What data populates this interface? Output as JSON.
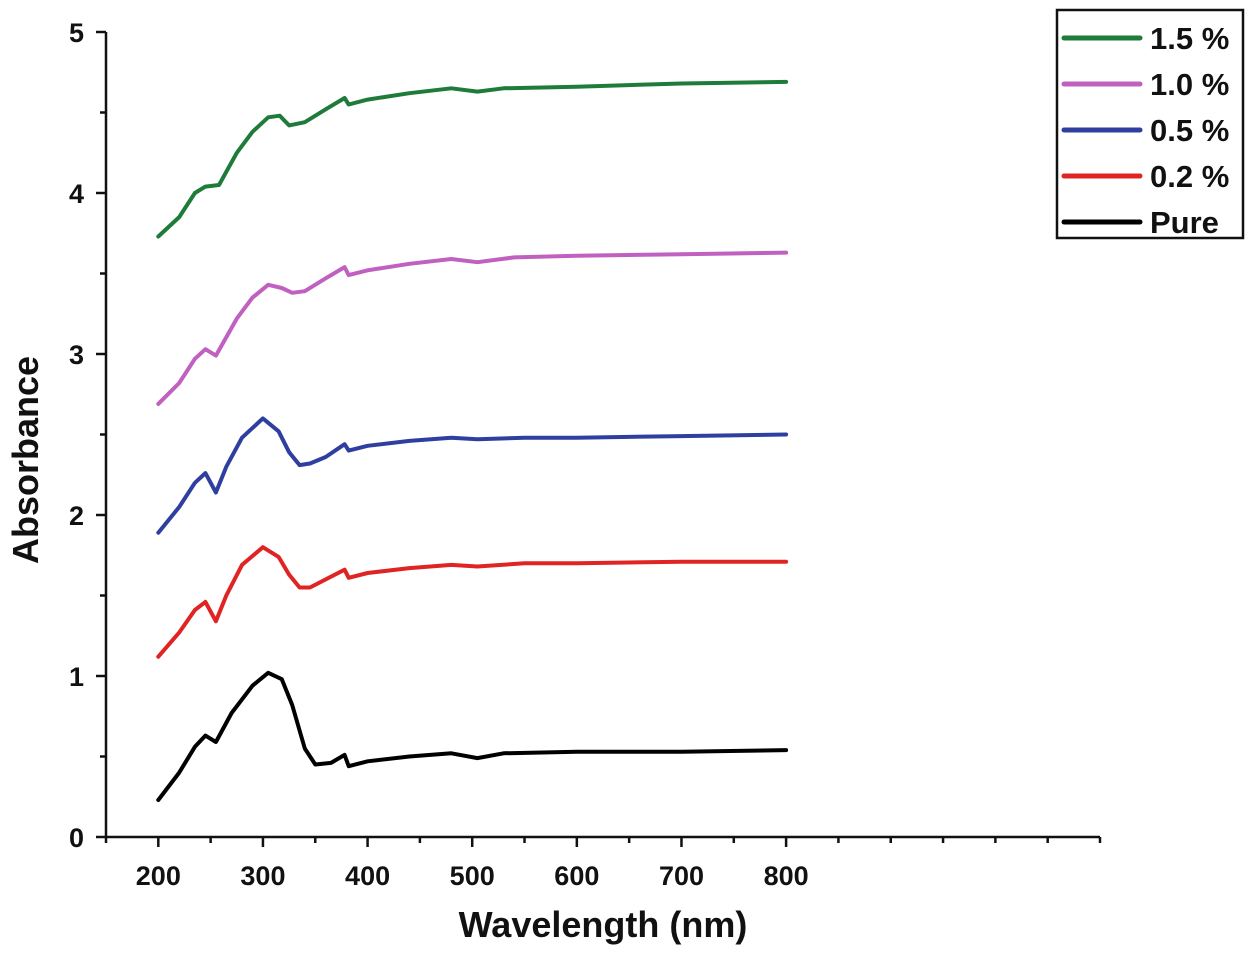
{
  "chart_data": {
    "type": "line",
    "title": "",
    "xlabel": "Wavelength (nm)",
    "ylabel": "Absorbance",
    "xlim": [
      150,
      1100
    ],
    "ylim": [
      0,
      5
    ],
    "x_ticks": [
      200,
      300,
      400,
      500,
      600,
      700,
      800
    ],
    "y_ticks": [
      0,
      1,
      2,
      3,
      4,
      5
    ],
    "grid": false,
    "legend_position": "top-right",
    "series": [
      {
        "name": "1.5 %",
        "color": "#1e7b3a",
        "points": [
          [
            200,
            3.73
          ],
          [
            220,
            3.85
          ],
          [
            235,
            4.0
          ],
          [
            245,
            4.04
          ],
          [
            258,
            4.05
          ],
          [
            275,
            4.25
          ],
          [
            290,
            4.38
          ],
          [
            305,
            4.47
          ],
          [
            316,
            4.48
          ],
          [
            325,
            4.42
          ],
          [
            340,
            4.44
          ],
          [
            360,
            4.52
          ],
          [
            378,
            4.59
          ],
          [
            382,
            4.55
          ],
          [
            400,
            4.58
          ],
          [
            440,
            4.62
          ],
          [
            480,
            4.65
          ],
          [
            505,
            4.63
          ],
          [
            530,
            4.65
          ],
          [
            600,
            4.66
          ],
          [
            700,
            4.68
          ],
          [
            800,
            4.69
          ]
        ]
      },
      {
        "name": "1.0 %",
        "color": "#c060c0",
        "points": [
          [
            200,
            2.69
          ],
          [
            220,
            2.82
          ],
          [
            235,
            2.97
          ],
          [
            245,
            3.03
          ],
          [
            255,
            2.99
          ],
          [
            275,
            3.22
          ],
          [
            290,
            3.35
          ],
          [
            305,
            3.43
          ],
          [
            318,
            3.41
          ],
          [
            328,
            3.38
          ],
          [
            340,
            3.39
          ],
          [
            360,
            3.47
          ],
          [
            378,
            3.54
          ],
          [
            382,
            3.49
          ],
          [
            400,
            3.52
          ],
          [
            440,
            3.56
          ],
          [
            480,
            3.59
          ],
          [
            505,
            3.57
          ],
          [
            540,
            3.6
          ],
          [
            600,
            3.61
          ],
          [
            700,
            3.62
          ],
          [
            800,
            3.63
          ]
        ]
      },
      {
        "name": "0.5 %",
        "color": "#2f3f9f",
        "points": [
          [
            200,
            1.89
          ],
          [
            220,
            2.05
          ],
          [
            235,
            2.2
          ],
          [
            245,
            2.26
          ],
          [
            255,
            2.14
          ],
          [
            265,
            2.3
          ],
          [
            280,
            2.48
          ],
          [
            300,
            2.6
          ],
          [
            315,
            2.52
          ],
          [
            325,
            2.39
          ],
          [
            335,
            2.31
          ],
          [
            345,
            2.32
          ],
          [
            360,
            2.36
          ],
          [
            378,
            2.44
          ],
          [
            382,
            2.4
          ],
          [
            400,
            2.43
          ],
          [
            440,
            2.46
          ],
          [
            480,
            2.48
          ],
          [
            505,
            2.47
          ],
          [
            550,
            2.48
          ],
          [
            600,
            2.48
          ],
          [
            700,
            2.49
          ],
          [
            800,
            2.5
          ]
        ]
      },
      {
        "name": "0.2 %",
        "color": "#e02424",
        "points": [
          [
            200,
            1.12
          ],
          [
            220,
            1.27
          ],
          [
            235,
            1.41
          ],
          [
            245,
            1.46
          ],
          [
            255,
            1.34
          ],
          [
            265,
            1.5
          ],
          [
            280,
            1.69
          ],
          [
            300,
            1.8
          ],
          [
            315,
            1.74
          ],
          [
            325,
            1.63
          ],
          [
            335,
            1.55
          ],
          [
            345,
            1.55
          ],
          [
            360,
            1.6
          ],
          [
            378,
            1.66
          ],
          [
            382,
            1.61
          ],
          [
            400,
            1.64
          ],
          [
            440,
            1.67
          ],
          [
            480,
            1.69
          ],
          [
            505,
            1.68
          ],
          [
            550,
            1.7
          ],
          [
            600,
            1.7
          ],
          [
            700,
            1.71
          ],
          [
            800,
            1.71
          ]
        ]
      },
      {
        "name": "Pure",
        "color": "#000000",
        "points": [
          [
            200,
            0.23
          ],
          [
            220,
            0.4
          ],
          [
            235,
            0.56
          ],
          [
            245,
            0.63
          ],
          [
            255,
            0.59
          ],
          [
            270,
            0.77
          ],
          [
            290,
            0.94
          ],
          [
            305,
            1.02
          ],
          [
            318,
            0.98
          ],
          [
            328,
            0.82
          ],
          [
            340,
            0.55
          ],
          [
            350,
            0.45
          ],
          [
            365,
            0.46
          ],
          [
            378,
            0.51
          ],
          [
            382,
            0.44
          ],
          [
            400,
            0.47
          ],
          [
            440,
            0.5
          ],
          [
            480,
            0.52
          ],
          [
            505,
            0.49
          ],
          [
            530,
            0.52
          ],
          [
            600,
            0.53
          ],
          [
            700,
            0.53
          ],
          [
            800,
            0.54
          ]
        ]
      }
    ]
  }
}
